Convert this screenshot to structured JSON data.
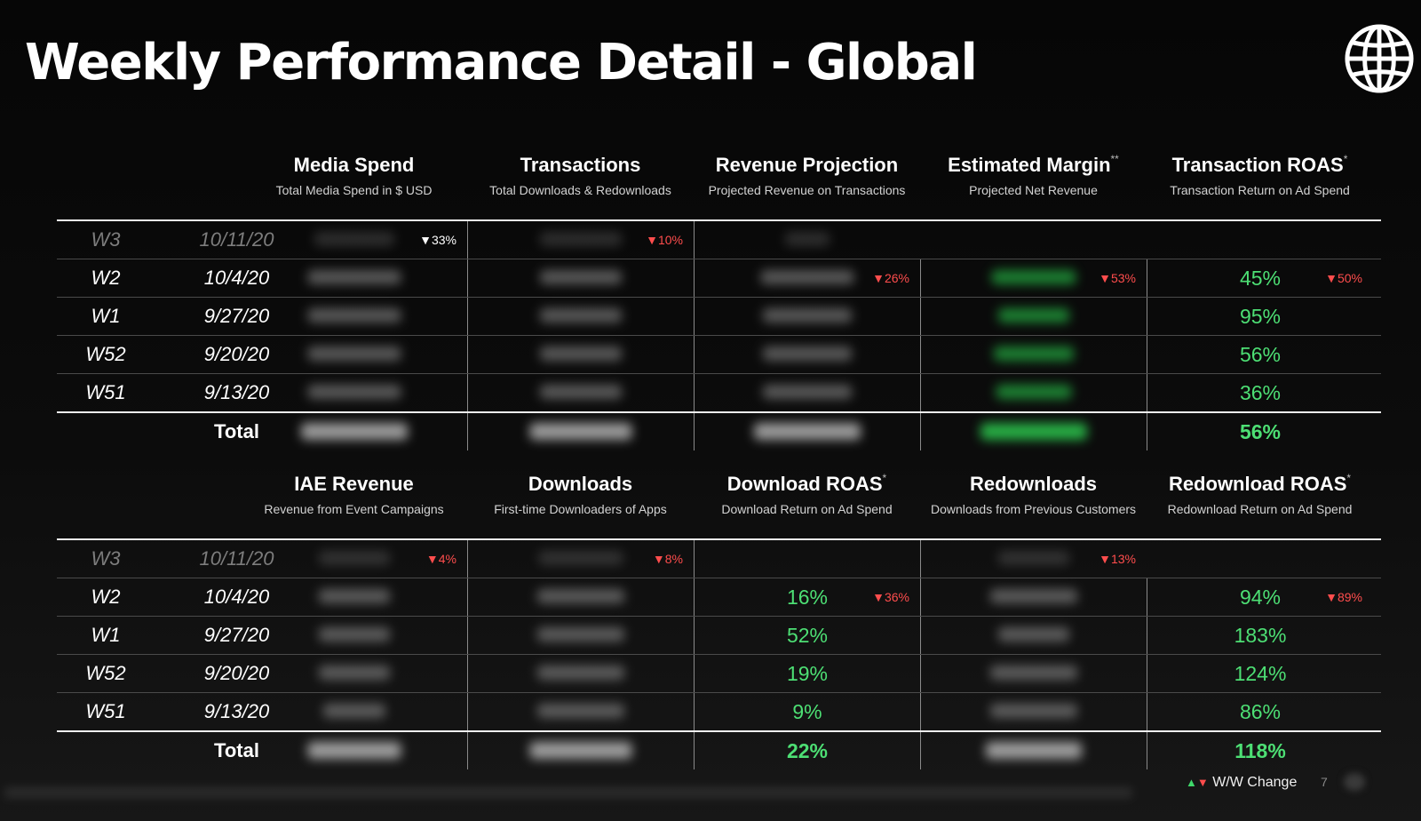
{
  "title": "Weekly Performance Detail - Global",
  "icons": {
    "globe": "globe-icon"
  },
  "colors": {
    "positive": "#4ddf74",
    "negative": "#ff4d4d",
    "background": "#0a0a0a"
  },
  "table1": {
    "columns": [
      {
        "title": "Media Spend",
        "sup": "",
        "sub": "Total Media Spend in $ USD"
      },
      {
        "title": "Transactions",
        "sup": "",
        "sub": "Total Downloads & Redownloads"
      },
      {
        "title": "Revenue Projection",
        "sup": "",
        "sub": "Projected Revenue on Transactions"
      },
      {
        "title": "Estimated Margin",
        "sup": "**",
        "sub": "Projected Net Revenue"
      },
      {
        "title": "Transaction ROAS",
        "sup": "*",
        "sub": "Transaction Return on Ad Spend"
      }
    ],
    "rows": [
      {
        "week": "W3",
        "date": "10/11/20",
        "roas": "",
        "changes": [
          "▼33%",
          "▼10%",
          "",
          "",
          ""
        ]
      },
      {
        "week": "W2",
        "date": "10/4/20",
        "roas": "45%",
        "changes": [
          "",
          "",
          "▼26%",
          "▼53%",
          "▼50%"
        ]
      },
      {
        "week": "W1",
        "date": "9/27/20",
        "roas": "95%",
        "changes": [
          "",
          "",
          "",
          "",
          ""
        ]
      },
      {
        "week": "W52",
        "date": "9/20/20",
        "roas": "56%",
        "changes": [
          "",
          "",
          "",
          "",
          ""
        ]
      },
      {
        "week": "W51",
        "date": "9/13/20",
        "roas": "36%",
        "changes": [
          "",
          "",
          "",
          "",
          ""
        ]
      }
    ],
    "total": {
      "label": "Total",
      "roas": "56%"
    }
  },
  "table2": {
    "columns": [
      {
        "title": "IAE Revenue",
        "sup": "",
        "sub": "Revenue from Event Campaigns"
      },
      {
        "title": "Downloads",
        "sup": "",
        "sub": "First-time Downloaders of Apps"
      },
      {
        "title": "Download ROAS",
        "sup": "*",
        "sub": "Download Return on Ad Spend"
      },
      {
        "title": "Redownloads",
        "sup": "",
        "sub": "Downloads from Previous Customers"
      },
      {
        "title": "Redownload ROAS",
        "sup": "*",
        "sub": "Redownload Return on Ad Spend"
      }
    ],
    "rows": [
      {
        "week": "W3",
        "date": "10/11/20",
        "download_roas": "",
        "redownload_roas": "",
        "changes": [
          "▼4%",
          "▼8%",
          "",
          "▼13%",
          ""
        ]
      },
      {
        "week": "W2",
        "date": "10/4/20",
        "download_roas": "16%",
        "redownload_roas": "94%",
        "changes": [
          "",
          "",
          "▼36%",
          "",
          "▼89%"
        ]
      },
      {
        "week": "W1",
        "date": "9/27/20",
        "download_roas": "52%",
        "redownload_roas": "183%",
        "changes": [
          "",
          "",
          "",
          "",
          ""
        ]
      },
      {
        "week": "W52",
        "date": "9/20/20",
        "download_roas": "19%",
        "redownload_roas": "124%",
        "changes": [
          "",
          "",
          "",
          "",
          ""
        ]
      },
      {
        "week": "W51",
        "date": "9/13/20",
        "download_roas": "9%",
        "redownload_roas": "86%",
        "changes": [
          "",
          "",
          "",
          "",
          ""
        ]
      }
    ],
    "total": {
      "label": "Total",
      "download_roas": "22%",
      "redownload_roas": "118%"
    }
  },
  "legend": {
    "up": "▲",
    "down": "▼",
    "label": "W/W Change"
  },
  "page_number": "7"
}
